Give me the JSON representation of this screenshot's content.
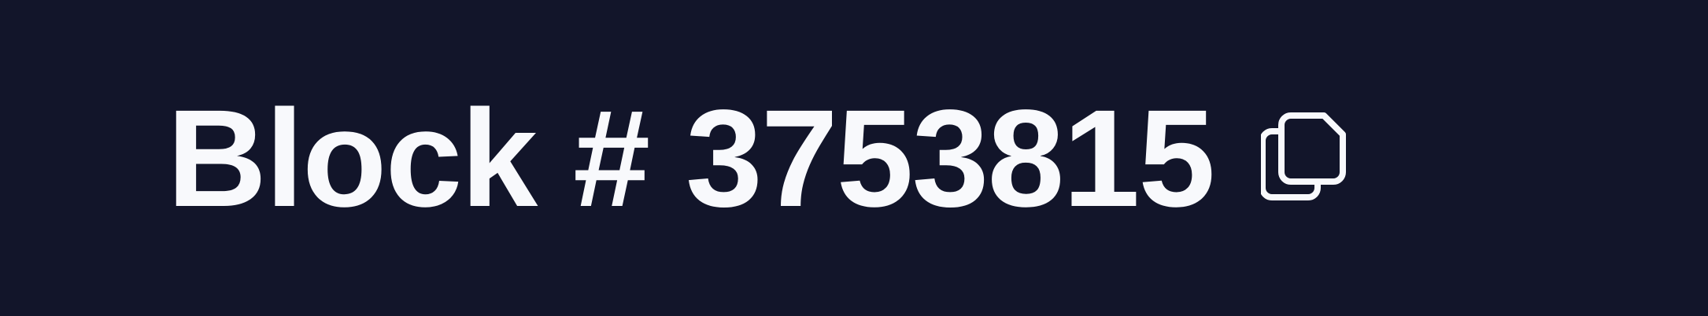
{
  "block": {
    "title": "Block # 3753815"
  },
  "icons": {
    "copy": "copy-icon"
  },
  "colors": {
    "background": "#12152a",
    "text": "#f8f9fc"
  }
}
